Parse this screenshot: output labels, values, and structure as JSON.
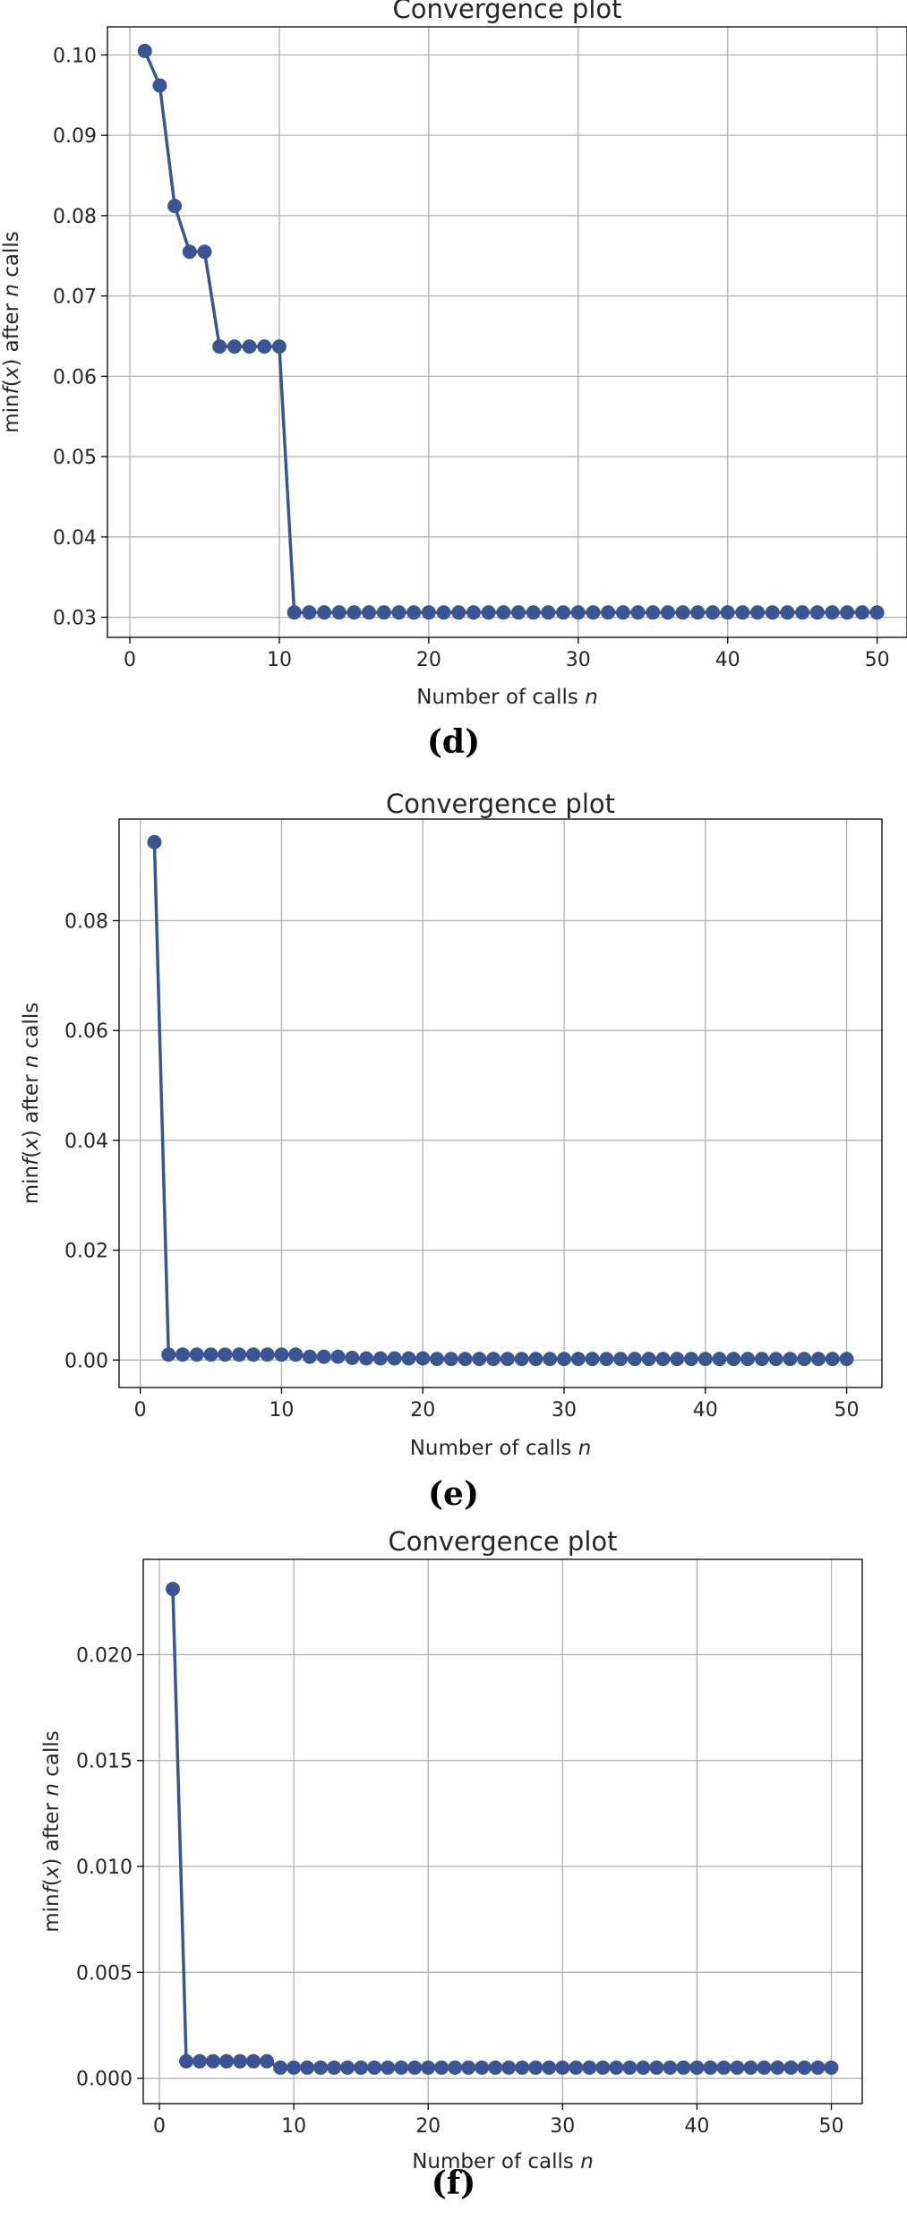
{
  "chart_data": [
    {
      "type": "line",
      "title": "Convergence plot",
      "xlabel": "Number of calls n",
      "ylabel": "min f(x) after n calls",
      "xlim": [
        -1.5,
        52
      ],
      "ylim": [
        0.0275,
        0.1035
      ],
      "xticks": [
        0,
        10,
        20,
        30,
        40,
        50
      ],
      "xtick_labels": [
        "0",
        "10",
        "20",
        "30",
        "40",
        "50"
      ],
      "yticks": [
        0.03,
        0.04,
        0.05,
        0.06,
        0.07,
        0.08,
        0.09,
        0.1
      ],
      "ytick_labels": [
        "0.03",
        "0.04",
        "0.05",
        "0.06",
        "0.07",
        "0.08",
        "0.09",
        "0.10"
      ],
      "grid": true,
      "color": "#3b5592",
      "x": [
        1,
        2,
        3,
        4,
        5,
        6,
        7,
        8,
        9,
        10,
        11,
        12,
        13,
        14,
        15,
        16,
        17,
        18,
        19,
        20,
        21,
        22,
        23,
        24,
        25,
        26,
        27,
        28,
        29,
        30,
        31,
        32,
        33,
        34,
        35,
        36,
        37,
        38,
        39,
        40,
        41,
        42,
        43,
        44,
        45,
        46,
        47,
        48,
        49,
        50
      ],
      "y": [
        0.1005,
        0.0962,
        0.0812,
        0.0755,
        0.0755,
        0.0637,
        0.0637,
        0.0637,
        0.0637,
        0.0637,
        0.0306,
        0.0306,
        0.0306,
        0.0306,
        0.0306,
        0.0306,
        0.0306,
        0.0306,
        0.0306,
        0.0306,
        0.0306,
        0.0306,
        0.0306,
        0.0306,
        0.0306,
        0.0306,
        0.0306,
        0.0306,
        0.0306,
        0.0306,
        0.0306,
        0.0306,
        0.0306,
        0.0306,
        0.0306,
        0.0306,
        0.0306,
        0.0306,
        0.0306,
        0.0306,
        0.0306,
        0.0306,
        0.0306,
        0.0306,
        0.0306,
        0.0306,
        0.0306,
        0.0306,
        0.0306,
        0.0306
      ]
    },
    {
      "type": "line",
      "title": "Convergence plot",
      "xlabel": "Number of calls n",
      "ylabel": "min f(x) after n calls",
      "xlim": [
        -1.5,
        52.5
      ],
      "ylim": [
        -0.005,
        0.0985
      ],
      "xticks": [
        0,
        10,
        20,
        30,
        40,
        50
      ],
      "xtick_labels": [
        "0",
        "10",
        "20",
        "30",
        "40",
        "50"
      ],
      "yticks": [
        0.0,
        0.02,
        0.04,
        0.06,
        0.08
      ],
      "ytick_labels": [
        "0.00",
        "0.02",
        "0.04",
        "0.06",
        "0.08"
      ],
      "grid": true,
      "color": "#3b5592",
      "x": [
        1,
        2,
        3,
        4,
        5,
        6,
        7,
        8,
        9,
        10,
        11,
        12,
        13,
        14,
        15,
        16,
        17,
        18,
        19,
        20,
        21,
        22,
        23,
        24,
        25,
        26,
        27,
        28,
        29,
        30,
        31,
        32,
        33,
        34,
        35,
        36,
        37,
        38,
        39,
        40,
        41,
        42,
        43,
        44,
        45,
        46,
        47,
        48,
        49,
        50
      ],
      "y": [
        0.0943,
        0.001,
        0.001,
        0.001,
        0.001,
        0.001,
        0.001,
        0.001,
        0.001,
        0.001,
        0.001,
        0.0006,
        0.0006,
        0.0006,
        0.0004,
        0.0003,
        0.0003,
        0.0003,
        0.0003,
        0.0003,
        0.0002,
        0.0002,
        0.0002,
        0.0002,
        0.0002,
        0.0002,
        0.0002,
        0.0002,
        0.0002,
        0.0002,
        0.0002,
        0.0002,
        0.0002,
        0.0002,
        0.0002,
        0.0002,
        0.0002,
        0.0002,
        0.0002,
        0.0002,
        0.0002,
        0.0002,
        0.0002,
        0.0002,
        0.0002,
        0.0002,
        0.0002,
        0.0002,
        0.0002,
        0.0002
      ]
    },
    {
      "type": "line",
      "title": "Convergence plot",
      "xlabel": "Number of calls n",
      "ylabel": "min f(x) after n calls",
      "xlim": [
        -1.2,
        52.3
      ],
      "ylim": [
        -0.0012,
        0.0245
      ],
      "xticks": [
        0,
        10,
        20,
        30,
        40,
        50
      ],
      "xtick_labels": [
        "0",
        "10",
        "20",
        "30",
        "40",
        "50"
      ],
      "yticks": [
        0.0,
        0.005,
        0.01,
        0.015,
        0.02
      ],
      "ytick_labels": [
        "0.000",
        "0.005",
        "0.010",
        "0.015",
        "0.020"
      ],
      "grid": true,
      "color": "#3b5592",
      "x": [
        1,
        2,
        3,
        4,
        5,
        6,
        7,
        8,
        9,
        10,
        11,
        12,
        13,
        14,
        15,
        16,
        17,
        18,
        19,
        20,
        21,
        22,
        23,
        24,
        25,
        26,
        27,
        28,
        29,
        30,
        31,
        32,
        33,
        34,
        35,
        36,
        37,
        38,
        39,
        40,
        41,
        42,
        43,
        44,
        45,
        46,
        47,
        48,
        49,
        50
      ],
      "y": [
        0.0231,
        0.0008,
        0.0008,
        0.0008,
        0.0008,
        0.0008,
        0.0008,
        0.0008,
        0.0005,
        0.0005,
        0.0005,
        0.0005,
        0.0005,
        0.0005,
        0.0005,
        0.0005,
        0.0005,
        0.0005,
        0.0005,
        0.0005,
        0.0005,
        0.0005,
        0.0005,
        0.0005,
        0.0005,
        0.0005,
        0.0005,
        0.0005,
        0.0005,
        0.0005,
        0.0005,
        0.0005,
        0.0005,
        0.0005,
        0.0005,
        0.0005,
        0.0005,
        0.0005,
        0.0005,
        0.0005,
        0.0005,
        0.0005,
        0.0005,
        0.0005,
        0.0005,
        0.0005,
        0.0005,
        0.0005,
        0.0005,
        0.0005
      ]
    }
  ],
  "captions": [
    "(d)",
    "(e)",
    "(f)"
  ]
}
